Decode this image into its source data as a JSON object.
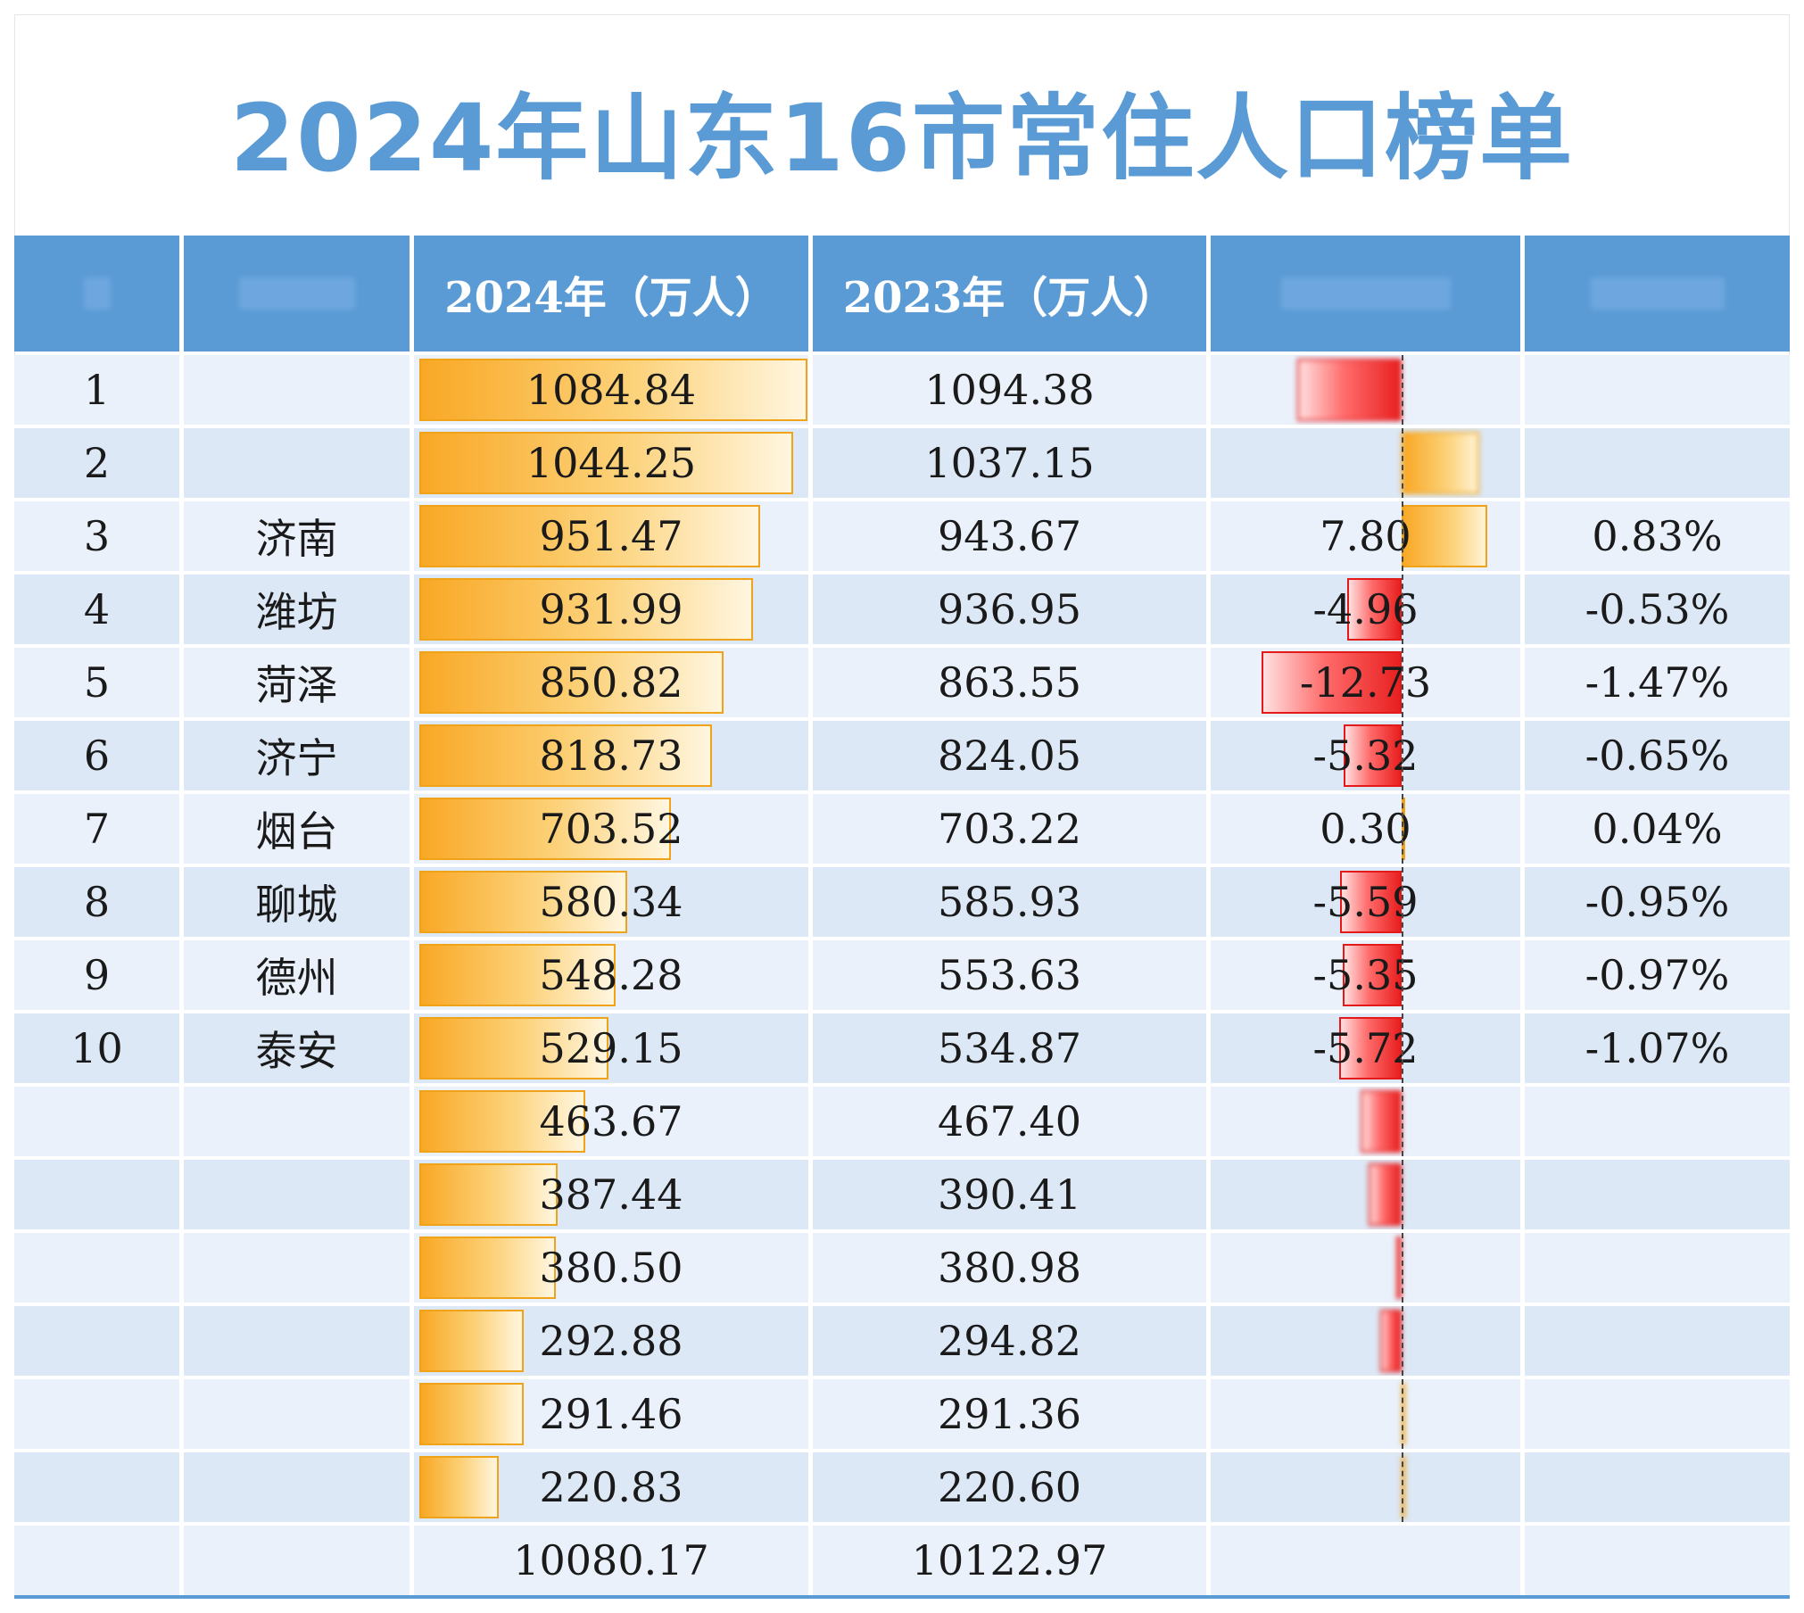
{
  "title": "2024年山东16市常住人口榜单",
  "colors": {
    "header_bg": "#5b9bd5",
    "title": "#5b9bd5",
    "bar": "#f9a825",
    "negative": "#e82020"
  },
  "headers": [
    "",
    "",
    "2024年（万人）",
    "2023年（万人）",
    "",
    ""
  ],
  "rows": [
    {
      "rank": "1",
      "city": "",
      "v2024": "1084.84",
      "v2023": "1094.38",
      "change": "",
      "pct": ""
    },
    {
      "rank": "2",
      "city": "",
      "v2024": "1044.25",
      "v2023": "1037.15",
      "change": "",
      "pct": ""
    },
    {
      "rank": "3",
      "city": "济南",
      "v2024": "951.47",
      "v2023": "943.67",
      "change": "7.80",
      "pct": "0.83%"
    },
    {
      "rank": "4",
      "city": "潍坊",
      "v2024": "931.99",
      "v2023": "936.95",
      "change": "-4.96",
      "pct": "-0.53%"
    },
    {
      "rank": "5",
      "city": "菏泽",
      "v2024": "850.82",
      "v2023": "863.55",
      "change": "-12.73",
      "pct": "-1.47%"
    },
    {
      "rank": "6",
      "city": "济宁",
      "v2024": "818.73",
      "v2023": "824.05",
      "change": "-5.32",
      "pct": "-0.65%"
    },
    {
      "rank": "7",
      "city": "烟台",
      "v2024": "703.52",
      "v2023": "703.22",
      "change": "0.30",
      "pct": "0.04%"
    },
    {
      "rank": "8",
      "city": "聊城",
      "v2024": "580.34",
      "v2023": "585.93",
      "change": "-5.59",
      "pct": "-0.95%"
    },
    {
      "rank": "9",
      "city": "德州",
      "v2024": "548.28",
      "v2023": "553.63",
      "change": "-5.35",
      "pct": "-0.97%"
    },
    {
      "rank": "10",
      "city": "泰安",
      "v2024": "529.15",
      "v2023": "534.87",
      "change": "-5.72",
      "pct": "-1.07%"
    },
    {
      "rank": "",
      "city": "",
      "v2024": "463.67",
      "v2023": "467.40",
      "change": "",
      "pct": ""
    },
    {
      "rank": "",
      "city": "",
      "v2024": "387.44",
      "v2023": "390.41",
      "change": "",
      "pct": ""
    },
    {
      "rank": "",
      "city": "",
      "v2024": "380.50",
      "v2023": "380.98",
      "change": "",
      "pct": ""
    },
    {
      "rank": "",
      "city": "",
      "v2024": "292.88",
      "v2023": "294.82",
      "change": "",
      "pct": ""
    },
    {
      "rank": "",
      "city": "",
      "v2024": "291.46",
      "v2023": "291.36",
      "change": "",
      "pct": ""
    },
    {
      "rank": "",
      "city": "",
      "v2024": "220.83",
      "v2023": "220.60",
      "change": "",
      "pct": ""
    }
  ],
  "totals": {
    "v2024": "10080.17",
    "v2023": "10122.97"
  },
  "chart_data": {
    "type": "table",
    "title": "2024年山东16市常住人口榜单",
    "columns": [
      "",
      "",
      "2024年（万人）",
      "2023年（万人）",
      "",
      ""
    ],
    "series": [
      {
        "name": "2024年（万人）",
        "values": [
          1084.84,
          1044.25,
          951.47,
          931.99,
          850.82,
          818.73,
          703.52,
          580.34,
          548.28,
          529.15,
          463.67,
          387.44,
          380.5,
          292.88,
          291.46,
          220.83
        ]
      },
      {
        "name": "2023年（万人）",
        "values": [
          1094.38,
          1037.15,
          943.67,
          936.95,
          863.55,
          824.05,
          703.22,
          585.93,
          553.63,
          534.87,
          467.4,
          390.41,
          380.98,
          294.82,
          291.36,
          220.6
        ]
      }
    ],
    "change_values": [
      -9.54,
      7.1,
      7.8,
      -4.96,
      -12.73,
      -5.32,
      0.3,
      -5.59,
      -5.35,
      -5.72,
      -3.73,
      -2.97,
      -0.48,
      -1.94,
      0.1,
      0.23
    ],
    "totals": [
      10080.17,
      10122.97
    ]
  }
}
